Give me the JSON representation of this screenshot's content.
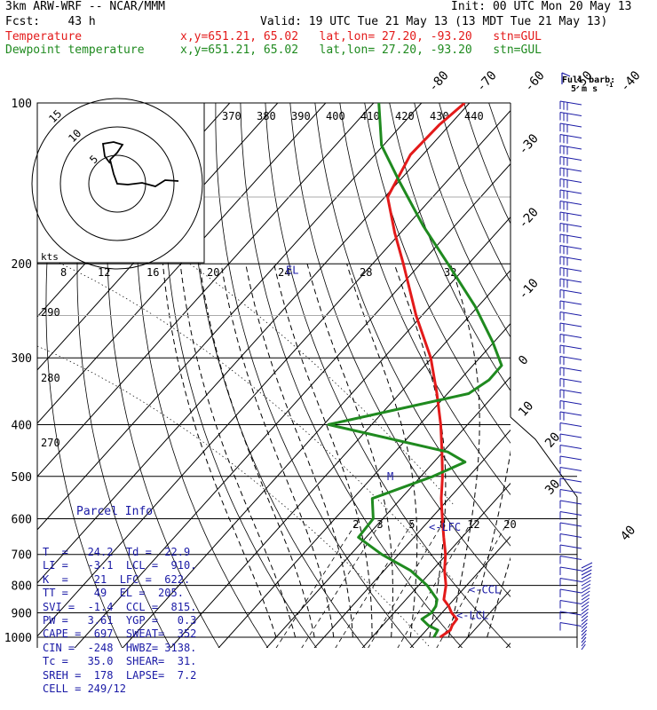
{
  "header": {
    "model": "3km ARW-WRF -- NCAR/MMM",
    "init": "Init: 00 UTC Mon 20 May 13",
    "fcst": "Fcst:    43 h",
    "valid": "Valid: 19 UTC Tue 21 May 13 (13 MDT Tue 21 May 13)",
    "temp_label": "Temperature",
    "dew_label": "Dewpoint temperature",
    "temp_loc": "x,y=651.21, 65.02   lat,lon= 27.20, -93.20   stn=GUL",
    "dew_loc": "x,y=651.21, 65.02   lat,lon= 27.20, -93.20   stn=GUL"
  },
  "colors": {
    "temperature": "#e31a1a",
    "dewpoint": "#1f8a1f",
    "text": "#000000",
    "parcel_info": "#1a1aa6",
    "grid": "#000000"
  },
  "barb_legend": {
    "line1": "Full barb:",
    "line2": "5 m s",
    "sup": "-1"
  },
  "hodograph": {
    "ring_labels": [
      "5",
      "10",
      "15"
    ],
    "kts_label": "kts"
  },
  "parcel": {
    "title": "Parcel Info",
    "rows": [
      "T  =   24.2  Td =  22.9",
      "LI =   -3.1  LCL =  910.",
      "K  =    21  LFC =  622.",
      "TT =    49  EL =  205.",
      "SVI =  -1.4  CCL =  815.",
      "PW =   3.61  YGP =   0.3",
      "CAPE =  697  SWEAT=  352",
      "CIN =  -248  HWBZ= 3138.",
      "Tc =   35.0  SHEAR=  31.",
      "SREH =  178  LAPSE=  7.2",
      "CELL = 249/12"
    ]
  },
  "level_markers": {
    "el": "EL",
    "lfc": "<-LFC",
    "ccl": "<-CCL",
    "lcl": "<-LCL",
    "m": "M"
  },
  "chart_data": {
    "type": "line",
    "subtype": "skew-T log-P thermodynamic diagram",
    "y_axis": "pressure (hPa), log scale, inverted",
    "ylim": [
      1050,
      100
    ],
    "pressure_ticks": [
      "100",
      "200",
      "300",
      "400",
      "500",
      "600",
      "700",
      "800",
      "900",
      "1000"
    ],
    "isotherm_labels_top": [
      "-80",
      "-70",
      "-60",
      "-50",
      "-40"
    ],
    "isotherm_labels_right": [
      "-30",
      "-20",
      "-10",
      "0",
      "10",
      "20",
      "30",
      "40"
    ],
    "dry_adiabat_labels": [
      "370",
      "380",
      "390",
      "400",
      "410",
      "420",
      "430",
      "440"
    ],
    "mixing_ratio_labels_upper": [
      "8",
      "12",
      "16",
      "20",
      "24",
      "28",
      "32"
    ],
    "mixing_ratio_labels_lower": [
      "2",
      "3",
      "5",
      "8",
      "12",
      "20"
    ],
    "theta_e_labels": [
      "290",
      "280",
      "270"
    ],
    "series": [
      {
        "name": "Temperature",
        "p": [
          1000,
          970,
          950,
          925,
          900,
          875,
          850,
          800,
          750,
          700,
          650,
          600,
          550,
          500,
          450,
          400,
          350,
          300,
          250,
          200,
          175,
          150,
          125,
          110,
          100
        ],
        "t": [
          24.2,
          25,
          24.5,
          24.3,
          22,
          20.2,
          17.9,
          15.7,
          12.6,
          9.8,
          6.2,
          2.4,
          -1.6,
          -5.5,
          -10.2,
          -15.6,
          -22.2,
          -30.2,
          -41.2,
          -53.6,
          -61.2,
          -69.4,
          -72.6,
          -72.2,
          -71
        ]
      },
      {
        "name": "Dewpoint temperature",
        "p": [
          1000,
          970,
          950,
          925,
          900,
          875,
          850,
          800,
          750,
          700,
          650,
          600,
          550,
          500,
          470,
          450,
          400,
          350,
          330,
          310,
          280,
          240,
          200,
          170,
          140,
          120,
          100
        ],
        "t": [
          22.9,
          22.4,
          19.5,
          17,
          17.8,
          17.5,
          16.5,
          11.8,
          5.5,
          -3.5,
          -11.6,
          -12,
          -16,
          -7.5,
          -3.5,
          -9,
          -39,
          -15.6,
          -13.9,
          -14,
          -20.3,
          -30.7,
          -44.3,
          -56.5,
          -70,
          -80.4,
          -88.9
        ]
      }
    ],
    "parcel_levels_hPa": {
      "LCL": 910,
      "LFC": 622,
      "EL": 205,
      "CCL": 815
    }
  }
}
